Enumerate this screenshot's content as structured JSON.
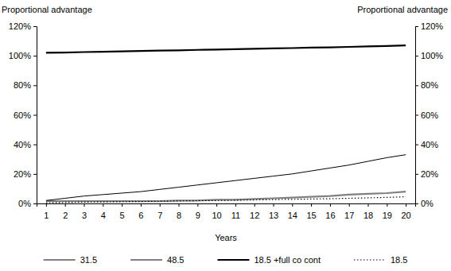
{
  "chart_data": {
    "type": "line",
    "y_label": "Proportional advantage",
    "y2_label": "Proportional advantage",
    "x_label": "Years",
    "categories": [
      "1",
      "2",
      "3",
      "4",
      "5",
      "6",
      "7",
      "8",
      "9",
      "10",
      "11",
      "12",
      "13",
      "14",
      "15",
      "16",
      "17",
      "18",
      "19",
      "20"
    ],
    "series": [
      {
        "name": "31.5",
        "color": "#808080",
        "line_style": "solid",
        "values": [
          1.5,
          1.5,
          1.5,
          1.5,
          1.5,
          1.5,
          1.5,
          2,
          2,
          2.5,
          2.5,
          3,
          3.5,
          4,
          4.5,
          5,
          6,
          6.5,
          7,
          8
        ]
      },
      {
        "name": "48.5",
        "color": "#000000",
        "line_style": "solid",
        "values": [
          2,
          3.5,
          5,
          6,
          7,
          8,
          9.5,
          11,
          12.5,
          14,
          15.5,
          17,
          18.5,
          20,
          22,
          24,
          26,
          28.5,
          31,
          33
        ]
      },
      {
        "name": "18.5 +full co cont",
        "color": "#000000",
        "line_style": "solid",
        "values": [
          102,
          102.2,
          102.5,
          102.7,
          103,
          103.2,
          103.5,
          103.7,
          104,
          104.2,
          104.5,
          104.7,
          105,
          105.2,
          105.5,
          105.7,
          106,
          106.3,
          106.6,
          107
        ]
      },
      {
        "name": "18.5",
        "color": "#000000",
        "line_style": "dotted",
        "values": [
          0.5,
          0.7,
          0.9,
          1,
          1.2,
          1.3,
          1.5,
          1.7,
          1.9,
          2,
          2.2,
          2.4,
          2.6,
          2.8,
          3,
          3.2,
          3.5,
          3.8,
          4.1,
          4.5
        ]
      }
    ],
    "ylim": [
      0,
      120
    ],
    "yticks": [
      {
        "value": 0,
        "label": "0%"
      },
      {
        "value": 20,
        "label": "20%"
      },
      {
        "value": 40,
        "label": "40%"
      },
      {
        "value": 60,
        "label": "60%"
      },
      {
        "value": 80,
        "label": "80%"
      },
      {
        "value": 100,
        "label": "100%"
      },
      {
        "value": 120,
        "label": "120%"
      }
    ],
    "y2lim": [
      0,
      120
    ],
    "y2ticks": [
      {
        "value": 0,
        "label": "0%"
      },
      {
        "value": 20,
        "label": "20%"
      },
      {
        "value": 40,
        "label": "40%"
      },
      {
        "value": 60,
        "label": "60%"
      },
      {
        "value": 80,
        "label": "80%"
      },
      {
        "value": 100,
        "label": "100%"
      },
      {
        "value": 120,
        "label": "120%"
      }
    ],
    "grid": false,
    "legend": "bottom"
  }
}
